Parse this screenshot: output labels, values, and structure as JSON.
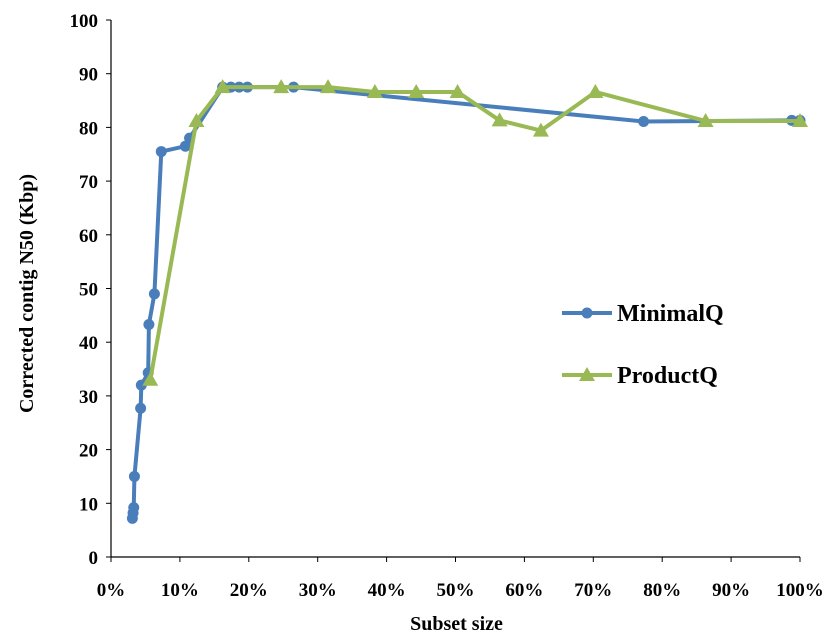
{
  "chart_data": {
    "type": "line",
    "xlabel": "Subset size",
    "ylabel": "Corrected contig N50 (Kbp)",
    "xlim": [
      0,
      100
    ],
    "ylim": [
      0,
      100
    ],
    "x_ticks": [
      "0%",
      "10%",
      "20%",
      "30%",
      "40%",
      "50%",
      "60%",
      "70%",
      "80%",
      "90%",
      "100%"
    ],
    "y_ticks": [
      "0",
      "10",
      "20",
      "30",
      "40",
      "50",
      "60",
      "70",
      "80",
      "90",
      "100"
    ],
    "grid": false,
    "legend_position": "right",
    "series": [
      {
        "name": "MinimalQ",
        "color": "#4a7ebb",
        "marker": "circle",
        "points": [
          [
            3.1,
            7.2
          ],
          [
            3.2,
            8.2
          ],
          [
            3.3,
            9.2
          ],
          [
            3.4,
            15.0
          ],
          [
            4.3,
            27.7
          ],
          [
            4.4,
            32.0
          ],
          [
            5.4,
            34.3
          ],
          [
            5.5,
            43.3
          ],
          [
            6.3,
            49.0
          ],
          [
            7.3,
            75.5
          ],
          [
            10.8,
            76.5
          ],
          [
            11.4,
            78.0
          ],
          [
            16.2,
            87.5
          ],
          [
            17.4,
            87.5
          ],
          [
            18.6,
            87.5
          ],
          [
            19.8,
            87.5
          ],
          [
            26.5,
            87.5
          ],
          [
            77.3,
            81.1
          ],
          [
            98.8,
            81.3
          ],
          [
            100,
            81.3
          ]
        ]
      },
      {
        "name": "ProductQ",
        "color": "#98b954",
        "marker": "triangle",
        "points": [
          [
            5.7,
            33.0
          ],
          [
            12.4,
            81.2
          ],
          [
            16.2,
            87.5
          ],
          [
            24.7,
            87.5
          ],
          [
            31.5,
            87.5
          ],
          [
            38.3,
            86.6
          ],
          [
            44.3,
            86.6
          ],
          [
            50.3,
            86.6
          ],
          [
            56.4,
            81.3
          ],
          [
            62.4,
            79.4
          ],
          [
            70.3,
            86.6
          ],
          [
            86.3,
            81.2
          ],
          [
            100,
            81.2
          ]
        ]
      }
    ]
  }
}
